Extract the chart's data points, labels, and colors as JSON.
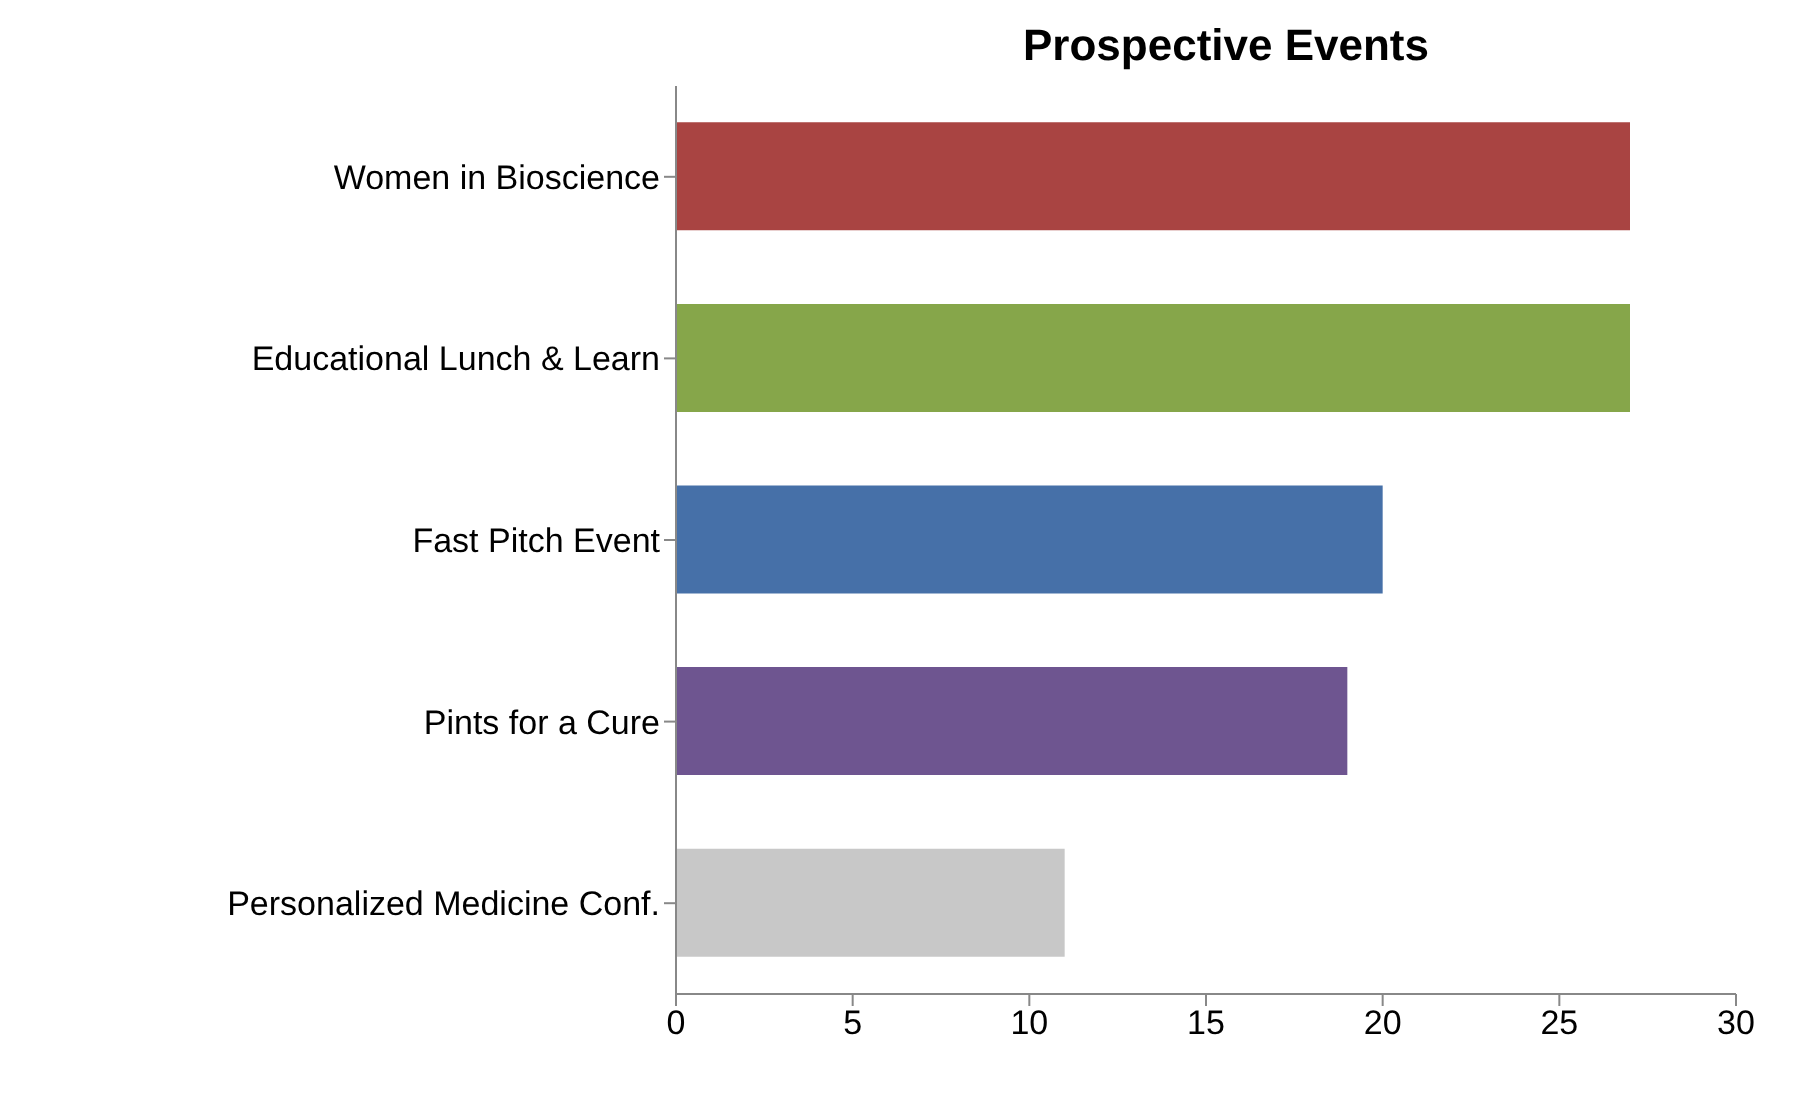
{
  "chart_data": {
    "type": "bar",
    "orientation": "horizontal",
    "title": "Prospective Events",
    "categories": [
      "Women in Bioscience",
      "Educational Lunch & Learn",
      "Fast Pitch Event",
      "Pints for a Cure",
      "Personalized Medicine Conf."
    ],
    "values": [
      27,
      27,
      20,
      19,
      11
    ],
    "colors": [
      "#a94442",
      "#86a64a",
      "#4670a8",
      "#6e5590",
      "#c8c8c8"
    ],
    "xlim": [
      0,
      30
    ],
    "xticks": [
      0,
      5,
      10,
      15,
      20,
      25,
      30
    ],
    "grid": false,
    "legend": false
  }
}
